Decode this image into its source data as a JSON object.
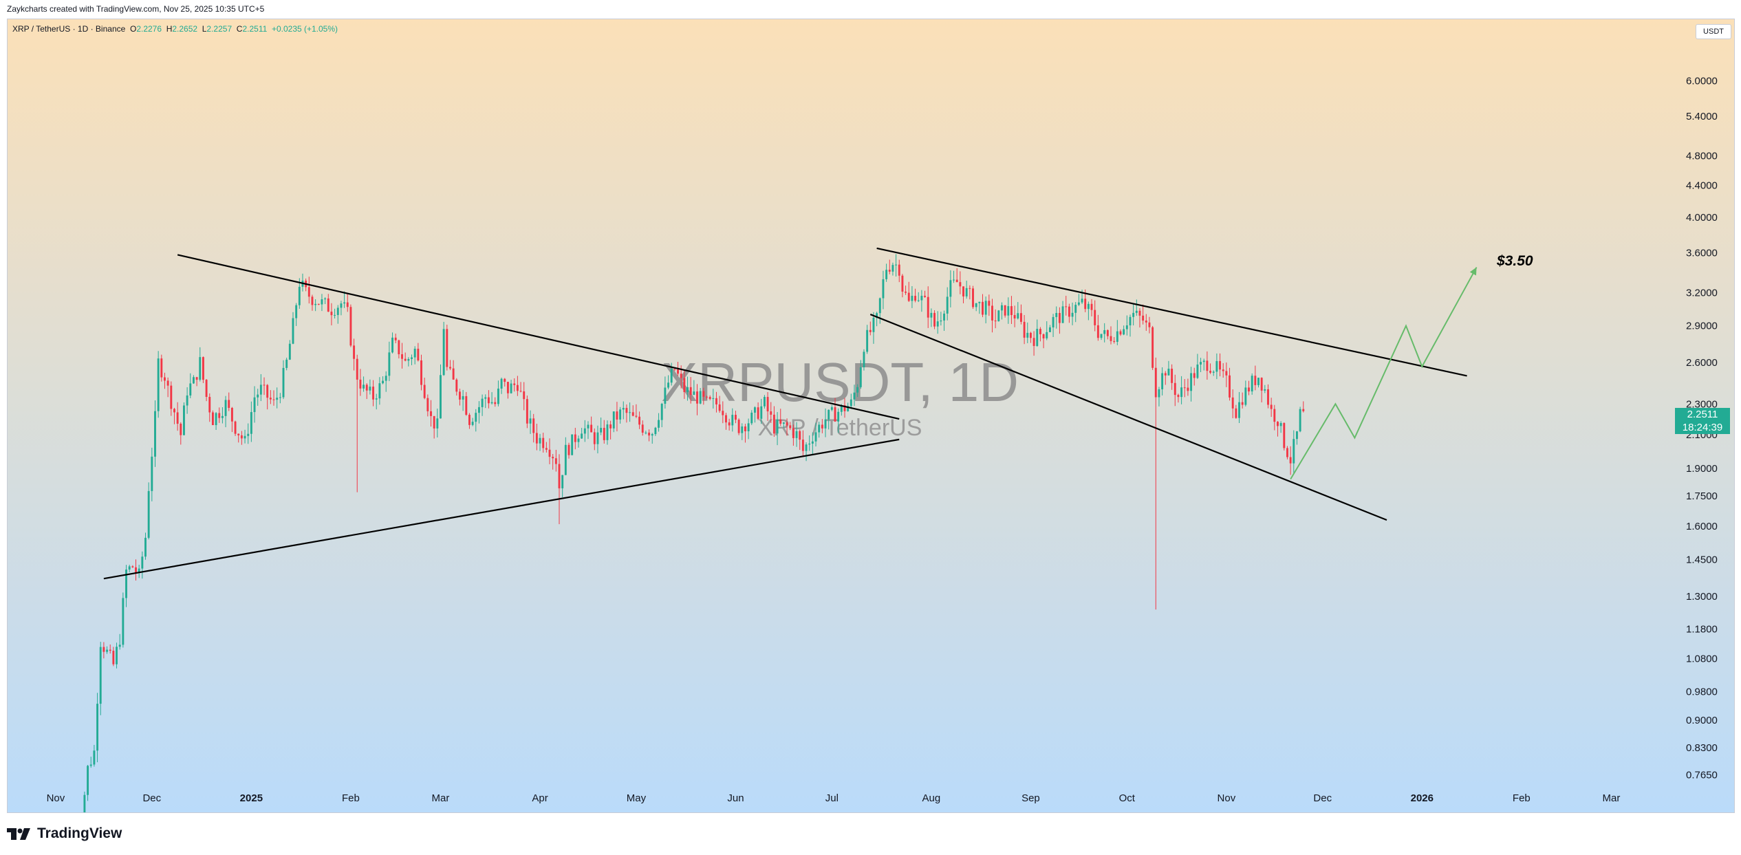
{
  "header": {
    "attribution": "Zaykcharts created with TradingView.com, Nov 25, 2025 10:35 UTC+5"
  },
  "symbol_line": {
    "name": "XRP / TetherUS · 1D · Binance",
    "o_label": "O",
    "o": "2.2276",
    "h_label": "H",
    "h": "2.2652",
    "l_label": "L",
    "l": "2.2257",
    "c_label": "C",
    "c": "2.2511",
    "change": "+0.0235 (+1.05%)"
  },
  "currency_button": "USDT",
  "watermark": {
    "ticker": "XRPUSDT, 1D",
    "description": "XRP / TetherUS"
  },
  "last_price": {
    "value": "2.2511",
    "countdown": "18:24:39"
  },
  "target_label": "$3.50",
  "footer": {
    "brand": "TradingView"
  },
  "colors": {
    "up": "#22ab94",
    "down": "#f23645",
    "trendline": "#000000",
    "projection": "#66bb6a",
    "bg_top": "#fbe0b8",
    "bg_bottom": "#badbfa"
  },
  "chart_data": {
    "type": "candlestick",
    "scale": "log",
    "y_ticks": [
      "6.0000",
      "5.4000",
      "4.8000",
      "4.4000",
      "4.0000",
      "3.6000",
      "3.2000",
      "2.9000",
      "2.6000",
      "2.3000",
      "2.1000",
      "1.9000",
      "1.7500",
      "1.6000",
      "1.4500",
      "1.3000",
      "1.1800",
      "1.0800",
      "0.9800",
      "0.9000",
      "0.8300",
      "0.7650"
    ],
    "x_ticks": [
      {
        "label": "Nov",
        "date": "2024-11-01",
        "bold": false
      },
      {
        "label": "Dec",
        "date": "2024-12-01",
        "bold": false
      },
      {
        "label": "2025",
        "date": "2025-01-01",
        "bold": true
      },
      {
        "label": "Feb",
        "date": "2025-02-01",
        "bold": false
      },
      {
        "label": "Mar",
        "date": "2025-03-01",
        "bold": false
      },
      {
        "label": "Apr",
        "date": "2025-04-01",
        "bold": false
      },
      {
        "label": "May",
        "date": "2025-05-01",
        "bold": false
      },
      {
        "label": "Jun",
        "date": "2025-06-01",
        "bold": false
      },
      {
        "label": "Jul",
        "date": "2025-07-01",
        "bold": false
      },
      {
        "label": "Aug",
        "date": "2025-08-01",
        "bold": false
      },
      {
        "label": "Sep",
        "date": "2025-09-01",
        "bold": false
      },
      {
        "label": "Oct",
        "date": "2025-10-01",
        "bold": false
      },
      {
        "label": "Nov",
        "date": "2025-11-01",
        "bold": false
      },
      {
        "label": "Dec",
        "date": "2025-12-01",
        "bold": false
      },
      {
        "label": "2026",
        "date": "2026-01-01",
        "bold": true
      },
      {
        "label": "Feb",
        "date": "2026-02-01",
        "bold": false
      },
      {
        "label": "Mar",
        "date": "2026-03-01",
        "bold": false
      }
    ],
    "x_range": [
      "2024-10-17",
      "2026-03-20"
    ],
    "y_range": [
      0.74,
      7.2
    ],
    "price_path": [
      [
        "2024-11-05",
        0.5
      ],
      [
        "2024-11-11",
        0.78
      ],
      [
        "2024-11-13",
        0.82
      ],
      [
        "2024-11-15",
        1.14
      ],
      [
        "2024-11-17",
        1.1
      ],
      [
        "2024-11-19",
        1.06
      ],
      [
        "2024-11-21",
        1.15
      ],
      [
        "2024-11-23",
        1.4
      ],
      [
        "2024-11-25",
        1.42
      ],
      [
        "2024-11-27",
        1.38
      ],
      [
        "2024-11-29",
        1.55
      ],
      [
        "2024-11-30",
        1.8
      ],
      [
        "2024-12-02",
        2.2
      ],
      [
        "2024-12-03",
        2.6
      ],
      [
        "2024-12-05",
        2.5
      ],
      [
        "2024-12-06",
        2.4
      ],
      [
        "2024-12-08",
        2.25
      ],
      [
        "2024-12-10",
        2.1
      ],
      [
        "2024-12-12",
        2.4
      ],
      [
        "2024-12-14",
        2.45
      ],
      [
        "2024-12-16",
        2.6
      ],
      [
        "2024-12-18",
        2.35
      ],
      [
        "2024-12-20",
        2.2
      ],
      [
        "2024-12-22",
        2.25
      ],
      [
        "2024-12-24",
        2.3
      ],
      [
        "2024-12-27",
        2.15
      ],
      [
        "2024-12-30",
        2.05
      ],
      [
        "2025-01-02",
        2.35
      ],
      [
        "2025-01-04",
        2.4
      ],
      [
        "2025-01-06",
        2.35
      ],
      [
        "2025-01-08",
        2.3
      ],
      [
        "2025-01-10",
        2.4
      ],
      [
        "2025-01-12",
        2.6
      ],
      [
        "2025-01-14",
        2.9
      ],
      [
        "2025-01-15",
        3.1
      ],
      [
        "2025-01-16",
        3.3
      ],
      [
        "2025-01-18",
        3.2
      ],
      [
        "2025-01-20",
        3.15
      ],
      [
        "2025-01-23",
        3.1
      ],
      [
        "2025-01-26",
        3.05
      ],
      [
        "2025-01-29",
        3.1
      ],
      [
        "2025-01-31",
        3.0
      ],
      [
        "2025-02-02",
        2.6
      ],
      [
        "2025-02-03",
        2.5
      ],
      [
        "2025-02-05",
        2.4
      ],
      [
        "2025-02-08",
        2.35
      ],
      [
        "2025-02-11",
        2.45
      ],
      [
        "2025-02-14",
        2.75
      ],
      [
        "2025-02-16",
        2.7
      ],
      [
        "2025-02-18",
        2.6
      ],
      [
        "2025-02-21",
        2.7
      ],
      [
        "2025-02-24",
        2.4
      ],
      [
        "2025-02-26",
        2.2
      ],
      [
        "2025-02-28",
        2.15
      ],
      [
        "2025-03-02",
        2.9
      ],
      [
        "2025-03-03",
        2.55
      ],
      [
        "2025-03-05",
        2.45
      ],
      [
        "2025-03-08",
        2.35
      ],
      [
        "2025-03-10",
        2.2
      ],
      [
        "2025-03-12",
        2.25
      ],
      [
        "2025-03-15",
        2.35
      ],
      [
        "2025-03-18",
        2.3
      ],
      [
        "2025-03-20",
        2.45
      ],
      [
        "2025-03-22",
        2.4
      ],
      [
        "2025-03-25",
        2.45
      ],
      [
        "2025-03-28",
        2.2
      ],
      [
        "2025-03-31",
        2.08
      ],
      [
        "2025-04-03",
        2.05
      ],
      [
        "2025-04-06",
        1.95
      ],
      [
        "2025-04-07",
        1.8
      ],
      [
        "2025-04-09",
        2.0
      ],
      [
        "2025-04-11",
        2.05
      ],
      [
        "2025-04-14",
        2.15
      ],
      [
        "2025-04-18",
        2.08
      ],
      [
        "2025-04-21",
        2.1
      ],
      [
        "2025-04-24",
        2.2
      ],
      [
        "2025-04-27",
        2.25
      ],
      [
        "2025-04-30",
        2.2
      ],
      [
        "2025-05-03",
        2.15
      ],
      [
        "2025-05-06",
        2.12
      ],
      [
        "2025-05-09",
        2.3
      ],
      [
        "2025-05-11",
        2.45
      ],
      [
        "2025-05-13",
        2.55
      ],
      [
        "2025-05-16",
        2.4
      ],
      [
        "2025-05-20",
        2.35
      ],
      [
        "2025-05-23",
        2.3
      ],
      [
        "2025-05-27",
        2.3
      ],
      [
        "2025-05-30",
        2.2
      ],
      [
        "2025-06-02",
        2.15
      ],
      [
        "2025-06-06",
        2.2
      ],
      [
        "2025-06-10",
        2.3
      ],
      [
        "2025-06-13",
        2.15
      ],
      [
        "2025-06-17",
        2.15
      ],
      [
        "2025-06-20",
        2.1
      ],
      [
        "2025-06-22",
        2.0
      ],
      [
        "2025-06-25",
        2.1
      ],
      [
        "2025-06-29",
        2.2
      ],
      [
        "2025-07-03",
        2.25
      ],
      [
        "2025-07-07",
        2.3
      ],
      [
        "2025-07-09",
        2.45
      ],
      [
        "2025-07-11",
        2.75
      ],
      [
        "2025-07-13",
        2.85
      ],
      [
        "2025-07-15",
        2.95
      ],
      [
        "2025-07-17",
        3.3
      ],
      [
        "2025-07-18",
        3.45
      ],
      [
        "2025-07-20",
        3.5
      ],
      [
        "2025-07-22",
        3.45
      ],
      [
        "2025-07-23",
        3.25
      ],
      [
        "2025-07-25",
        3.1
      ],
      [
        "2025-07-27",
        3.2
      ],
      [
        "2025-07-30",
        3.1
      ],
      [
        "2025-08-02",
        2.9
      ],
      [
        "2025-08-04",
        3.0
      ],
      [
        "2025-08-07",
        3.25
      ],
      [
        "2025-08-09",
        3.3
      ],
      [
        "2025-08-12",
        3.2
      ],
      [
        "2025-08-15",
        3.1
      ],
      [
        "2025-08-18",
        3.05
      ],
      [
        "2025-08-21",
        2.95
      ],
      [
        "2025-08-24",
        3.05
      ],
      [
        "2025-08-27",
        3.0
      ],
      [
        "2025-08-30",
        2.85
      ],
      [
        "2025-09-02",
        2.8
      ],
      [
        "2025-09-05",
        2.85
      ],
      [
        "2025-09-08",
        2.95
      ],
      [
        "2025-09-11",
        3.0
      ],
      [
        "2025-09-14",
        3.05
      ],
      [
        "2025-09-17",
        3.1
      ],
      [
        "2025-09-20",
        3.0
      ],
      [
        "2025-09-22",
        2.85
      ],
      [
        "2025-09-25",
        2.8
      ],
      [
        "2025-09-28",
        2.85
      ],
      [
        "2025-10-01",
        2.95
      ],
      [
        "2025-10-03",
        3.0
      ],
      [
        "2025-10-06",
        2.95
      ],
      [
        "2025-10-08",
        2.85
      ],
      [
        "2025-10-10",
        2.4
      ],
      [
        "2025-10-11",
        2.45
      ],
      [
        "2025-10-13",
        2.55
      ],
      [
        "2025-10-15",
        2.45
      ],
      [
        "2025-10-17",
        2.35
      ],
      [
        "2025-10-20",
        2.45
      ],
      [
        "2025-10-23",
        2.55
      ],
      [
        "2025-10-26",
        2.6
      ],
      [
        "2025-10-29",
        2.55
      ],
      [
        "2025-11-01",
        2.45
      ],
      [
        "2025-11-04",
        2.25
      ],
      [
        "2025-11-06",
        2.35
      ],
      [
        "2025-11-09",
        2.45
      ],
      [
        "2025-11-11",
        2.5
      ],
      [
        "2025-11-13",
        2.4
      ],
      [
        "2025-11-15",
        2.25
      ],
      [
        "2025-11-17",
        2.2
      ],
      [
        "2025-11-19",
        2.05
      ],
      [
        "2025-11-21",
        1.95
      ],
      [
        "2025-11-23",
        2.1
      ],
      [
        "2025-11-24",
        2.23
      ],
      [
        "2025-11-25",
        2.2511
      ]
    ],
    "anomalies": [
      {
        "date": "2025-02-03",
        "low": 1.77
      },
      {
        "date": "2025-04-07",
        "low": 1.61
      },
      {
        "date": "2025-10-10",
        "low": 1.25
      }
    ],
    "trendlines": [
      {
        "from": [
          "2024-12-09",
          3.58
        ],
        "to": [
          "2025-07-22",
          2.2
        ]
      },
      {
        "from": [
          "2024-11-16",
          1.37
        ],
        "to": [
          "2025-07-22",
          2.07
        ]
      },
      {
        "from": [
          "2025-07-15",
          3.65
        ],
        "to": [
          "2026-01-15",
          2.5
        ]
      },
      {
        "from": [
          "2025-07-13",
          3.0
        ],
        "to": [
          "2025-12-21",
          1.63
        ]
      }
    ],
    "projection": [
      [
        "2025-11-21",
        1.84
      ],
      [
        "2025-12-05",
        2.3
      ],
      [
        "2025-12-11",
        2.08
      ],
      [
        "2025-12-27",
        2.9
      ],
      [
        "2026-01-01",
        2.57
      ],
      [
        "2026-01-18",
        3.45
      ]
    ]
  }
}
